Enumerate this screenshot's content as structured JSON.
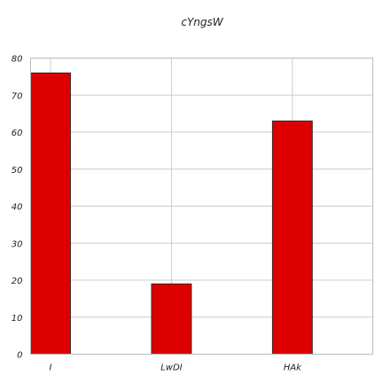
{
  "chart_data": {
    "type": "bar",
    "title": "cYngsW",
    "categories": [
      "I",
      "LwDI",
      "HAk"
    ],
    "series": [
      {
        "values": [
          76,
          19,
          63
        ]
      }
    ],
    "xlabel": "",
    "ylabel": "",
    "ylim": [
      0,
      80
    ],
    "yticks": [
      0,
      10,
      20,
      30,
      40,
      50,
      60,
      70,
      80
    ],
    "grid": true,
    "legend": "none",
    "colors": {
      "bar": "#dd0000",
      "bar_edge": "#1a1a1a",
      "grid": "#cccccc"
    }
  }
}
